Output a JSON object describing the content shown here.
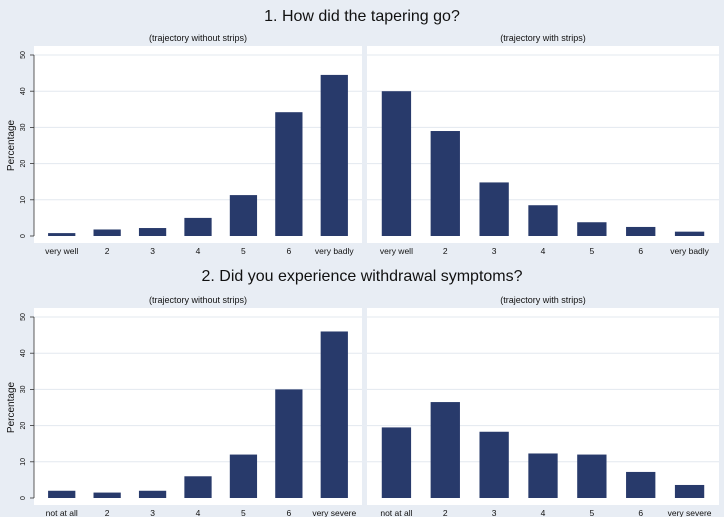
{
  "sections": [
    {
      "title": "1. How did the tapering go?"
    },
    {
      "title": "2. Did you experience withdrawal symptoms?"
    }
  ],
  "chart_data": [
    {
      "type": "bar",
      "subtitle": "(trajectory without strips)",
      "ylabel": "Percentage",
      "ylim": [
        0,
        50
      ],
      "yticks": [
        0,
        10,
        20,
        30,
        40,
        50
      ],
      "categories": [
        "very well",
        "2",
        "3",
        "4",
        "5",
        "6",
        "very badly"
      ],
      "values": [
        0.8,
        1.8,
        2.2,
        5,
        11.3,
        34.2,
        44.5
      ],
      "grid": true,
      "bar_color": "#283a6b"
    },
    {
      "type": "bar",
      "subtitle": "(trajectory with strips)",
      "ylabel": "",
      "ylim": [
        0,
        50
      ],
      "yticks": [
        0,
        10,
        20,
        30,
        40,
        50
      ],
      "categories": [
        "very well",
        "2",
        "3",
        "4",
        "5",
        "6",
        "very badly"
      ],
      "values": [
        40,
        29,
        14.8,
        8.5,
        3.8,
        2.5,
        1.2
      ],
      "grid": true,
      "bar_color": "#283a6b"
    },
    {
      "type": "bar",
      "subtitle": "(trajectory without strips)",
      "ylabel": "Percentage",
      "ylim": [
        0,
        50
      ],
      "yticks": [
        0,
        10,
        20,
        30,
        40,
        50
      ],
      "categories": [
        "not at all",
        "2",
        "3",
        "4",
        "5",
        "6",
        "very severe"
      ],
      "values": [
        2,
        1.5,
        2,
        6,
        12,
        30,
        46
      ],
      "grid": true,
      "bar_color": "#283a6b"
    },
    {
      "type": "bar",
      "subtitle": "(trajectory with strips)",
      "ylabel": "",
      "ylim": [
        0,
        50
      ],
      "yticks": [
        0,
        10,
        20,
        30,
        40,
        50
      ],
      "categories": [
        "not at all",
        "2",
        "3",
        "4",
        "5",
        "6",
        "very severe"
      ],
      "values": [
        19.5,
        26.5,
        18.3,
        12.3,
        12,
        7.2,
        3.6
      ],
      "grid": true,
      "bar_color": "#283a6b"
    }
  ]
}
